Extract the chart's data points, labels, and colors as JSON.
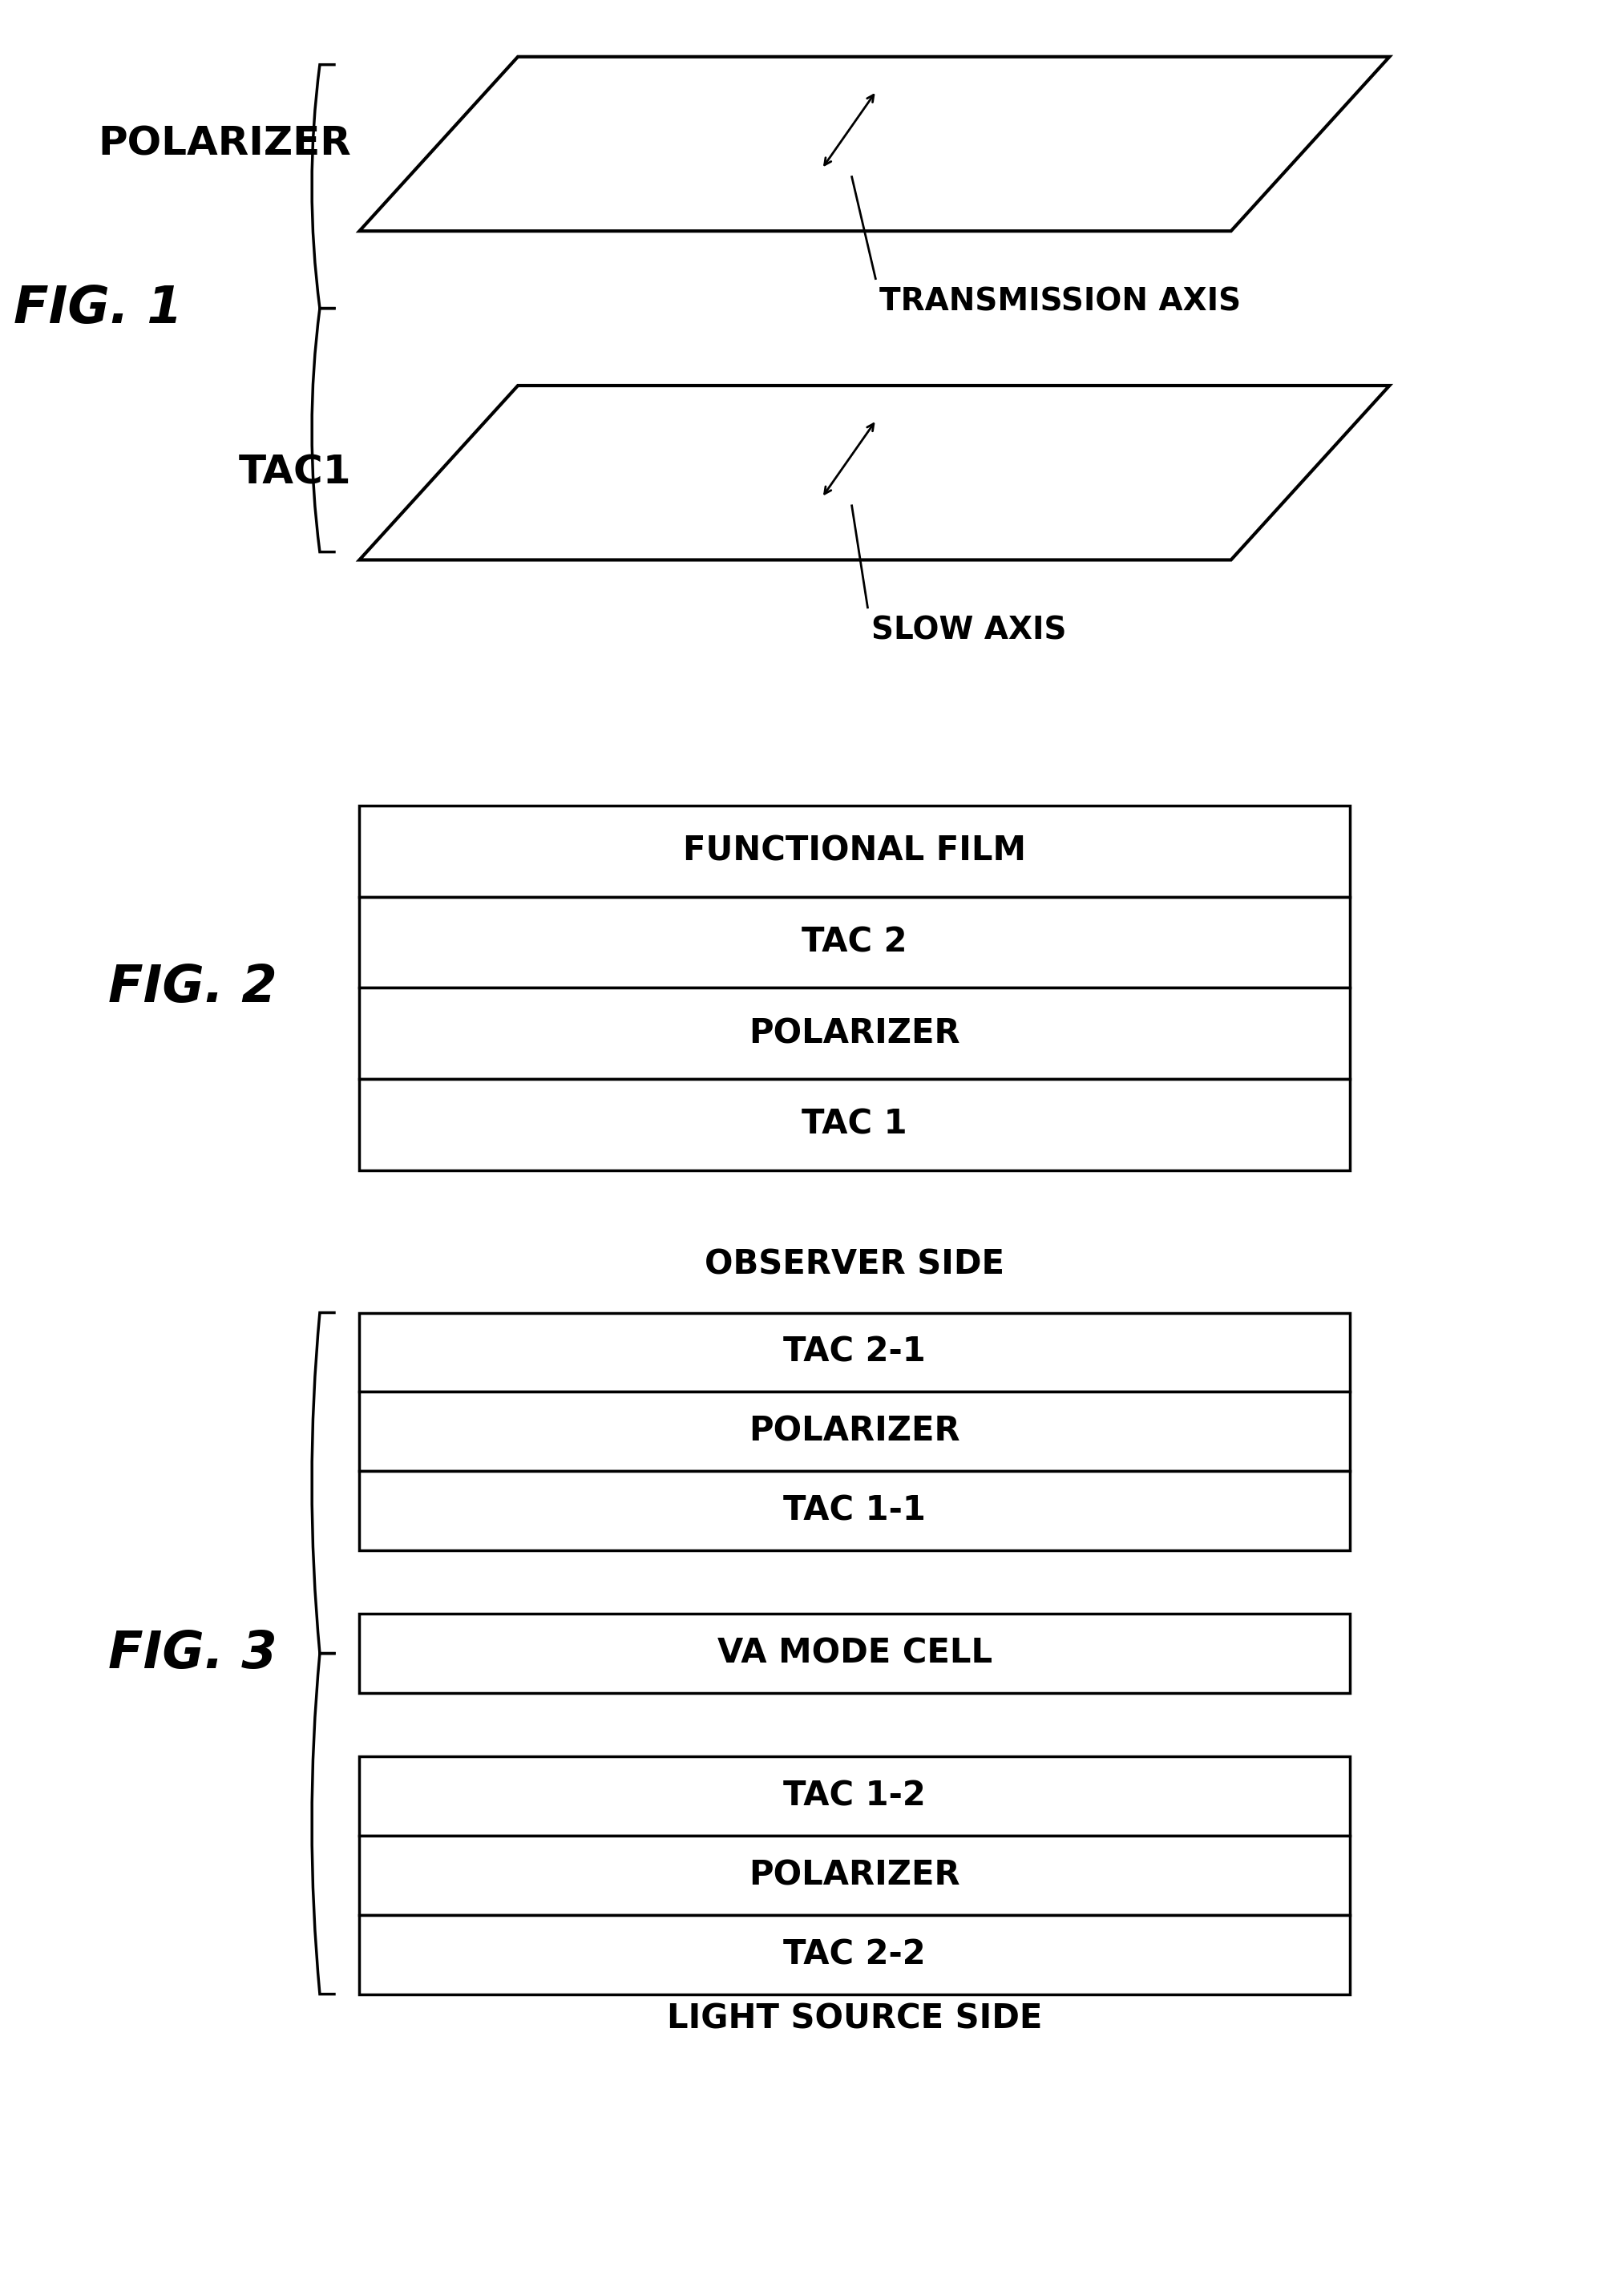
{
  "fig1_label": "FIG. 1",
  "fig2_label": "FIG. 2",
  "fig3_label": "FIG. 3",
  "polarizer_label": "POLARIZER",
  "tac1_label": "TAC1",
  "transmission_axis_label": "TRANSMISSION AXIS",
  "slow_axis_label": "SLOW AXIS",
  "fig2_layers": [
    "FUNCTIONAL FILM",
    "TAC 2",
    "POLARIZER",
    "TAC 1"
  ],
  "fig3_top_label": "OBSERVER SIDE",
  "fig3_top_layers": [
    "TAC 2-1",
    "POLARIZER",
    "TAC 1-1"
  ],
  "fig3_middle_layers": [
    "VA MODE CELL"
  ],
  "fig3_bottom_layers": [
    "TAC 1-2",
    "POLARIZER",
    "TAC 2-2"
  ],
  "fig3_bottom_label": "LIGHT SOURCE SIDE",
  "bg_color": "#ffffff",
  "line_color": "#000000",
  "text_color": "#000000",
  "parallelogram_fill": "#ffffff",
  "box_fill": "#ffffff"
}
